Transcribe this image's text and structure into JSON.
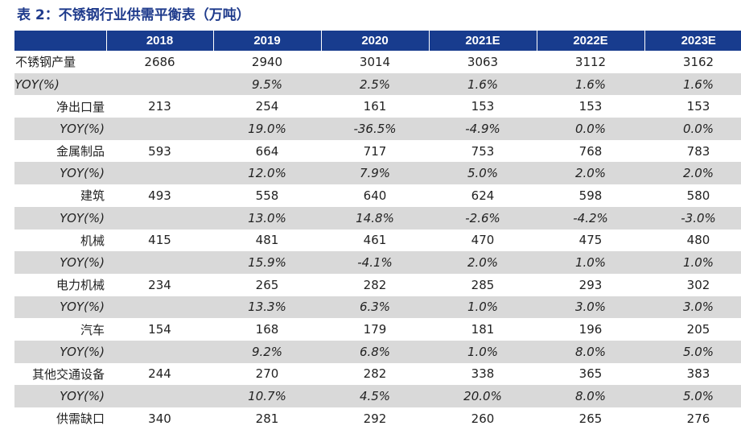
{
  "title": "表 2：不锈钢行业供需平衡表（万吨）",
  "columns": [
    "",
    "2018",
    "2019",
    "2020",
    "2021E",
    "2022E",
    "2023E"
  ],
  "rows": [
    {
      "label": "不锈钢产量",
      "level": 0,
      "yoy": false,
      "values": [
        "2686",
        "2940",
        "3014",
        "3063",
        "3112",
        "3162"
      ]
    },
    {
      "label": "YOY(%)",
      "level": 0,
      "yoy": true,
      "values": [
        "",
        "9.5%",
        "2.5%",
        "1.6%",
        "1.6%",
        "1.6%"
      ]
    },
    {
      "label": "净出口量",
      "level": 1,
      "yoy": false,
      "values": [
        "213",
        "254",
        "161",
        "153",
        "153",
        "153"
      ]
    },
    {
      "label": "YOY(%)",
      "level": 1,
      "yoy": true,
      "values": [
        "",
        "19.0%",
        "-36.5%",
        "-4.9%",
        "0.0%",
        "0.0%"
      ]
    },
    {
      "label": "金属制品",
      "level": 1,
      "yoy": false,
      "values": [
        "593",
        "664",
        "717",
        "753",
        "768",
        "783"
      ]
    },
    {
      "label": "YOY(%)",
      "level": 1,
      "yoy": true,
      "values": [
        "",
        "12.0%",
        "7.9%",
        "5.0%",
        "2.0%",
        "2.0%"
      ]
    },
    {
      "label": "建筑",
      "level": 1,
      "yoy": false,
      "values": [
        "493",
        "558",
        "640",
        "624",
        "598",
        "580"
      ]
    },
    {
      "label": "YOY(%)",
      "level": 1,
      "yoy": true,
      "values": [
        "",
        "13.0%",
        "14.8%",
        "-2.6%",
        "-4.2%",
        "-3.0%"
      ]
    },
    {
      "label": "机械",
      "level": 1,
      "yoy": false,
      "values": [
        "415",
        "481",
        "461",
        "470",
        "475",
        "480"
      ]
    },
    {
      "label": "YOY(%)",
      "level": 1,
      "yoy": true,
      "values": [
        "",
        "15.9%",
        "-4.1%",
        "2.0%",
        "1.0%",
        "1.0%"
      ]
    },
    {
      "label": "电力机械",
      "level": 1,
      "yoy": false,
      "values": [
        "234",
        "265",
        "282",
        "285",
        "293",
        "302"
      ]
    },
    {
      "label": "YOY(%)",
      "level": 1,
      "yoy": true,
      "values": [
        "",
        "13.3%",
        "6.3%",
        "1.0%",
        "3.0%",
        "3.0%"
      ]
    },
    {
      "label": "汽车",
      "level": 1,
      "yoy": false,
      "values": [
        "154",
        "168",
        "179",
        "181",
        "196",
        "205"
      ]
    },
    {
      "label": "YOY(%)",
      "level": 1,
      "yoy": true,
      "values": [
        "",
        "9.2%",
        "6.8%",
        "1.0%",
        "8.0%",
        "5.0%"
      ]
    },
    {
      "label": "其他交通设备",
      "level": 1,
      "yoy": false,
      "values": [
        "244",
        "270",
        "282",
        "338",
        "365",
        "383"
      ]
    },
    {
      "label": "YOY(%)",
      "level": 1,
      "yoy": true,
      "values": [
        "",
        "10.7%",
        "4.5%",
        "20.0%",
        "8.0%",
        "5.0%"
      ]
    },
    {
      "label": "供需缺口",
      "level": 1,
      "yoy": false,
      "values": [
        "340",
        "281",
        "292",
        "260",
        "265",
        "276"
      ]
    }
  ],
  "colors": {
    "header_bg": "#183c8e",
    "title": "#1f3b8c",
    "yoy_row_bg": "#d9d9d9"
  }
}
